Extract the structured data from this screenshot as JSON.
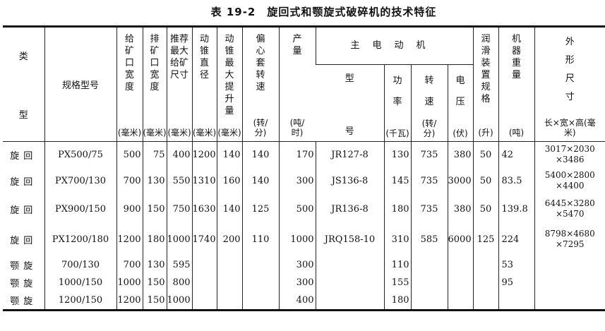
{
  "title": "表 19-2　旋回式和颚旋式破碎机的技术特征",
  "headers": {
    "type_top": "类",
    "type_bottom": "型",
    "model": "规格型号",
    "feed_width": {
      "label": "给矿口宽度",
      "unit": "(毫米)"
    },
    "discharge_width": {
      "label": "排矿口宽度",
      "unit": "(毫米)"
    },
    "max_feed": {
      "label": "推荐最大给矿尺寸",
      "unit": "(毫米)"
    },
    "cone_dia": {
      "label": "动锥直径",
      "unit": "(毫米)"
    },
    "cone_lift": {
      "label": "动锥最大提升量",
      "unit": "(毫米)"
    },
    "eccentric_speed": {
      "label": "偏心套转速",
      "unit": "(转/分)"
    },
    "capacity": {
      "label": "产量",
      "unit": "(吨/时)"
    },
    "motor": "主电动机",
    "motor_type": {
      "top": "型",
      "bottom": "号"
    },
    "motor_power": {
      "label": "功率",
      "unit": "(千瓦)"
    },
    "motor_speed": {
      "label": "转速",
      "unit": "(转/分)"
    },
    "motor_voltage": {
      "label": "电压",
      "unit": "(伏)"
    },
    "lube": {
      "label": "润滑装置规格",
      "unit": "(升)"
    },
    "weight": {
      "label": "机器重量",
      "unit": "(吨)"
    },
    "dims": {
      "label": "外形尺寸",
      "unit": "长×宽×高(毫米)"
    }
  },
  "rows": [
    {
      "type": "旋回",
      "model": "PX500/75",
      "feed": "500",
      "discharge": "75",
      "max_feed": "400",
      "cone_dia": "1200",
      "lift": "140",
      "ecc": "140",
      "cap": "170",
      "motor": "JR127-8",
      "power": "130",
      "speed": "735",
      "volt": "380",
      "lube": "50",
      "weight": "42",
      "dims1": "3017×2030",
      "dims2": "×3486"
    },
    {
      "type": "旋回",
      "model": "PX700/130",
      "feed": "700",
      "discharge": "130",
      "max_feed": "550",
      "cone_dia": "1310",
      "lift": "160",
      "ecc": "140",
      "cap": "300",
      "motor": "JS136-8",
      "power": "145",
      "speed": "735",
      "volt": "3000",
      "lube": "50",
      "weight": "83.5",
      "dims1": "5400×2800",
      "dims2": "×4400"
    },
    {
      "type": "旋回",
      "model": "PX900/150",
      "feed": "900",
      "discharge": "150",
      "max_feed": "750",
      "cone_dia": "1630",
      "lift": "140",
      "ecc": "125",
      "cap": "500",
      "motor": "JR136-8",
      "power": "180",
      "speed": "735",
      "volt": "380",
      "lube": "50",
      "weight": "139.8",
      "dims1": "6445×3280",
      "dims2": "×5470"
    },
    {
      "type": "旋回",
      "model": "PX1200/180",
      "feed": "1200",
      "discharge": "180",
      "max_feed": "1000",
      "cone_dia": "1740",
      "lift": "200",
      "ecc": "110",
      "cap": "1000",
      "motor": "JRQ158-10",
      "power": "310",
      "speed": "585",
      "volt": "6000",
      "lube": "125",
      "weight": "224",
      "dims1": "8798×4680",
      "dims2": "×7295"
    },
    {
      "type": "颚旋",
      "model": "700/130",
      "feed": "700",
      "discharge": "130",
      "max_feed": "595",
      "cone_dia": "",
      "lift": "",
      "ecc": "",
      "cap": "300",
      "motor": "",
      "power": "110",
      "speed": "",
      "volt": "",
      "lube": "",
      "weight": "53",
      "dims1": "",
      "dims2": ""
    },
    {
      "type": "颚旋",
      "model": "1000/150",
      "feed": "1000",
      "discharge": "150",
      "max_feed": "800",
      "cone_dia": "",
      "lift": "",
      "ecc": "",
      "cap": "300",
      "motor": "",
      "power": "155",
      "speed": "",
      "volt": "",
      "lube": "",
      "weight": "95",
      "dims1": "",
      "dims2": ""
    },
    {
      "type": "颚旋",
      "model": "1200/150",
      "feed": "1200",
      "discharge": "150",
      "max_feed": "1000",
      "cone_dia": "",
      "lift": "",
      "ecc": "",
      "cap": "400",
      "motor": "",
      "power": "180",
      "speed": "",
      "volt": "",
      "lube": "",
      "weight": "",
      "dims1": "",
      "dims2": ""
    }
  ]
}
